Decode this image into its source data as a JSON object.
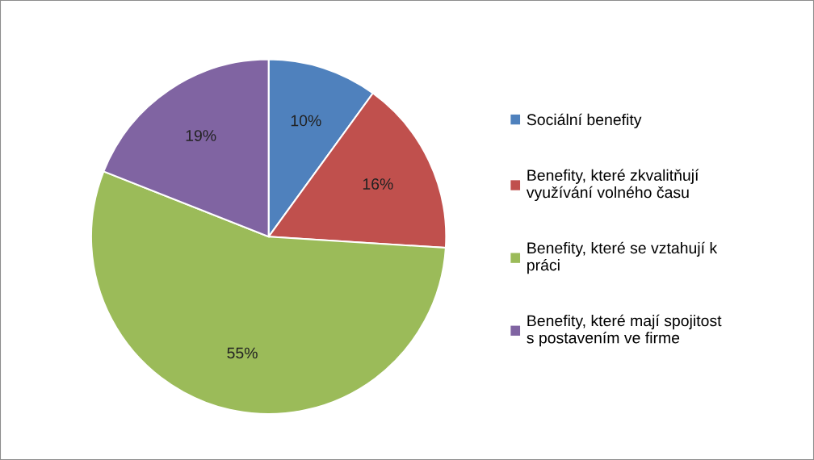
{
  "chart_data": {
    "type": "pie",
    "categories": [
      "Sociální benefity",
      "Benefity, které zkvalitňují využívání volného času",
      "Benefity, které se vztahují k práci",
      "Benefity, které mají spojitost s postavením ve firme"
    ],
    "values": [
      10,
      16,
      55,
      19
    ],
    "colors": [
      "#4f81bd",
      "#c0504d",
      "#9bbb59",
      "#8064a2"
    ],
    "value_labels": [
      "10%",
      "16%",
      "55%",
      "19%"
    ],
    "legend": "right"
  }
}
